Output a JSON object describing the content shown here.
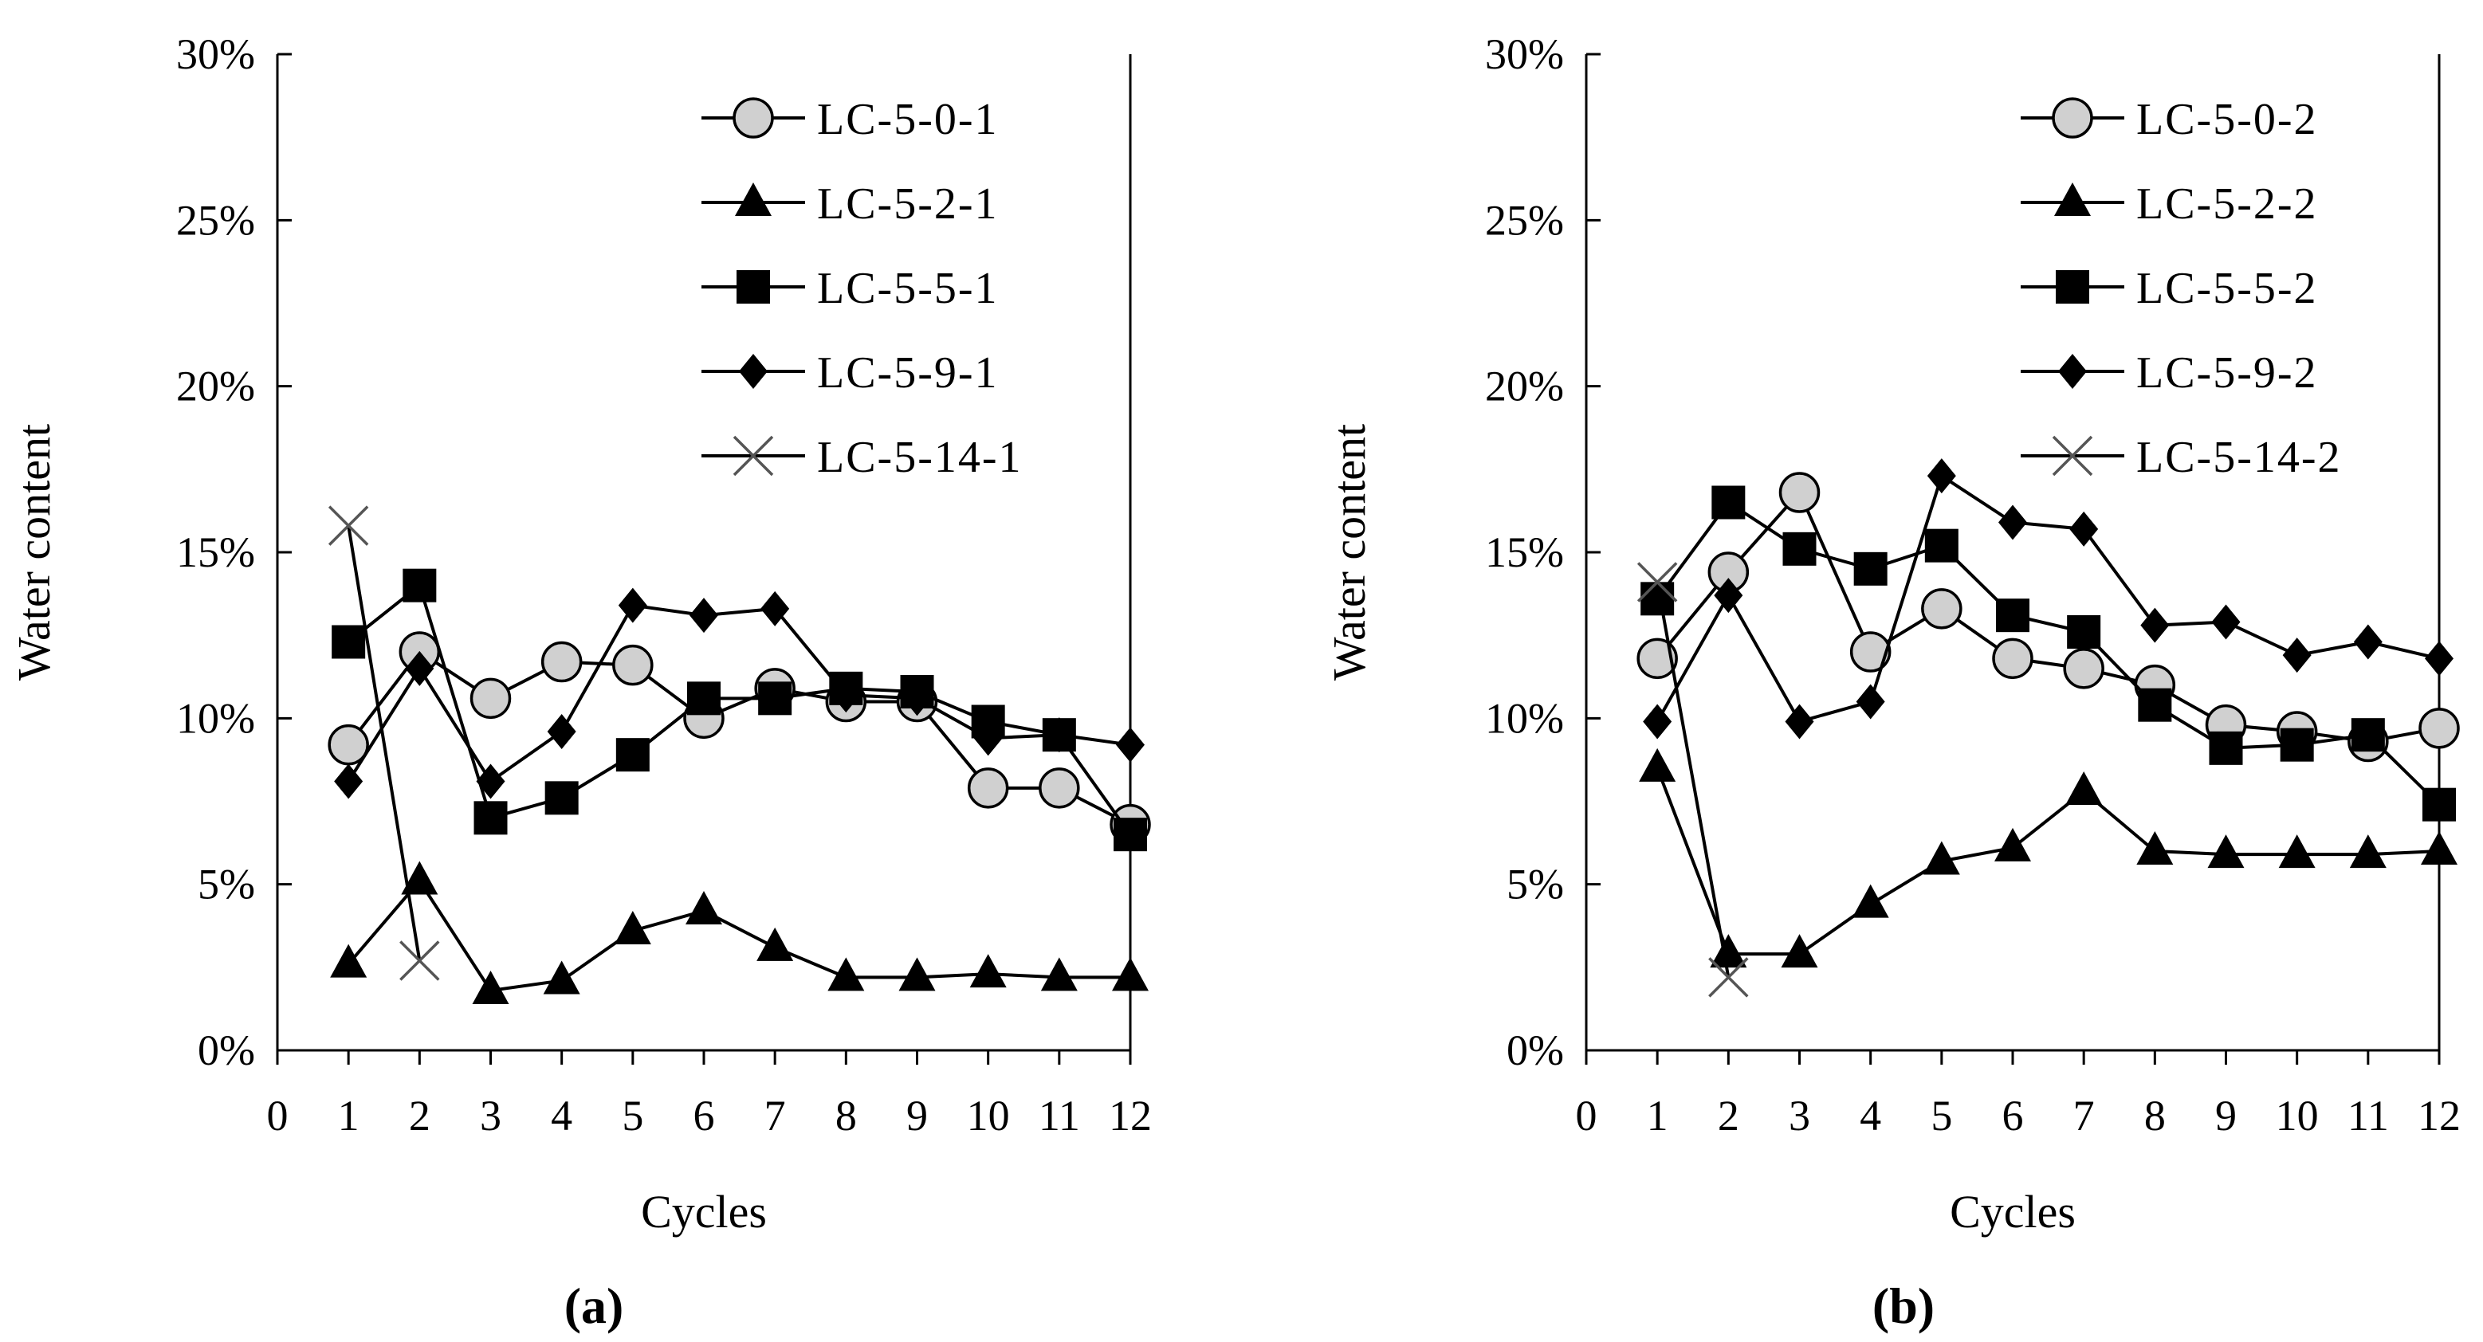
{
  "chart_data": [
    {
      "type": "line",
      "panel_label": "(a)",
      "xlabel": "Cycles",
      "ylabel": "Water content",
      "xlim": [
        0,
        12
      ],
      "ylim": [
        0,
        30
      ],
      "x_ticks": [
        "0",
        "1",
        "2",
        "3",
        "4",
        "5",
        "6",
        "7",
        "8",
        "9",
        "10",
        "11",
        "12"
      ],
      "y_ticks": [
        "0%",
        "5%",
        "10%",
        "15%",
        "20%",
        "25%",
        "30%"
      ],
      "grid": false,
      "legend_position": "top-right",
      "series": [
        {
          "name": "LC-5-0-1",
          "marker": "circle",
          "x": [
            1,
            2,
            3,
            4,
            5,
            6,
            7,
            8,
            9,
            10,
            11,
            12
          ],
          "y": [
            9.2,
            12.0,
            10.6,
            11.7,
            11.6,
            10.0,
            10.9,
            10.5,
            10.5,
            7.9,
            7.9,
            6.8
          ]
        },
        {
          "name": "LC-5-2-1",
          "marker": "triangle",
          "x": [
            1,
            2,
            3,
            4,
            5,
            6,
            7,
            8,
            9,
            10,
            11,
            12
          ],
          "y": [
            2.6,
            5.1,
            1.8,
            2.1,
            3.6,
            4.2,
            3.1,
            2.2,
            2.2,
            2.3,
            2.2,
            2.2
          ]
        },
        {
          "name": "LC-5-5-1",
          "marker": "square",
          "x": [
            1,
            2,
            3,
            4,
            5,
            6,
            7,
            8,
            9,
            10,
            11,
            12
          ],
          "y": [
            12.3,
            14.0,
            7.0,
            7.6,
            8.9,
            10.6,
            10.6,
            10.9,
            10.8,
            9.9,
            9.5,
            6.5
          ]
        },
        {
          "name": "LC-5-9-1",
          "marker": "diamond",
          "x": [
            1,
            2,
            3,
            4,
            5,
            6,
            7,
            8,
            9,
            10,
            11,
            12
          ],
          "y": [
            8.1,
            11.5,
            8.1,
            9.6,
            13.4,
            13.1,
            13.3,
            10.7,
            10.6,
            9.4,
            9.5,
            9.2
          ]
        },
        {
          "name": "LC-5-14-1",
          "marker": "x",
          "x": [
            1,
            2
          ],
          "y": [
            15.8,
            2.7
          ]
        }
      ]
    },
    {
      "type": "line",
      "panel_label": "(b)",
      "xlabel": "Cycles",
      "ylabel": "Water content",
      "xlim": [
        0,
        12
      ],
      "ylim": [
        0,
        30
      ],
      "x_ticks": [
        "0",
        "1",
        "2",
        "3",
        "4",
        "5",
        "6",
        "7",
        "8",
        "9",
        "10",
        "11",
        "12"
      ],
      "y_ticks": [
        "0%",
        "5%",
        "10%",
        "15%",
        "20%",
        "25%",
        "30%"
      ],
      "grid": false,
      "legend_position": "top-right",
      "series": [
        {
          "name": "LC-5-0-2",
          "marker": "circle",
          "x": [
            1,
            2,
            3,
            4,
            5,
            6,
            7,
            8,
            9,
            10,
            11,
            12
          ],
          "y": [
            11.8,
            14.4,
            16.8,
            12.0,
            13.3,
            11.8,
            11.5,
            11.0,
            9.8,
            9.6,
            9.3,
            9.7
          ]
        },
        {
          "name": "LC-5-2-2",
          "marker": "triangle",
          "x": [
            1,
            2,
            3,
            4,
            5,
            6,
            7,
            8,
            9,
            10,
            11,
            12
          ],
          "y": [
            8.5,
            2.9,
            2.9,
            4.4,
            5.7,
            6.1,
            7.8,
            6.0,
            5.9,
            5.9,
            5.9,
            6.0
          ]
        },
        {
          "name": "LC-5-5-2",
          "marker": "square",
          "x": [
            1,
            2,
            3,
            4,
            5,
            6,
            7,
            8,
            9,
            10,
            11,
            12
          ],
          "y": [
            13.6,
            16.5,
            15.1,
            14.5,
            15.2,
            13.1,
            12.6,
            10.4,
            9.1,
            9.2,
            9.5,
            7.4
          ]
        },
        {
          "name": "LC-5-9-2",
          "marker": "diamond",
          "x": [
            1,
            2,
            3,
            4,
            5,
            6,
            7,
            8,
            9,
            10,
            11,
            12
          ],
          "y": [
            9.9,
            13.7,
            9.9,
            10.5,
            17.3,
            15.9,
            15.7,
            12.8,
            12.9,
            11.9,
            12.3,
            11.8
          ]
        },
        {
          "name": "LC-5-14-2",
          "marker": "x",
          "x": [
            1,
            2
          ],
          "y": [
            14.1,
            2.2
          ]
        }
      ]
    }
  ]
}
